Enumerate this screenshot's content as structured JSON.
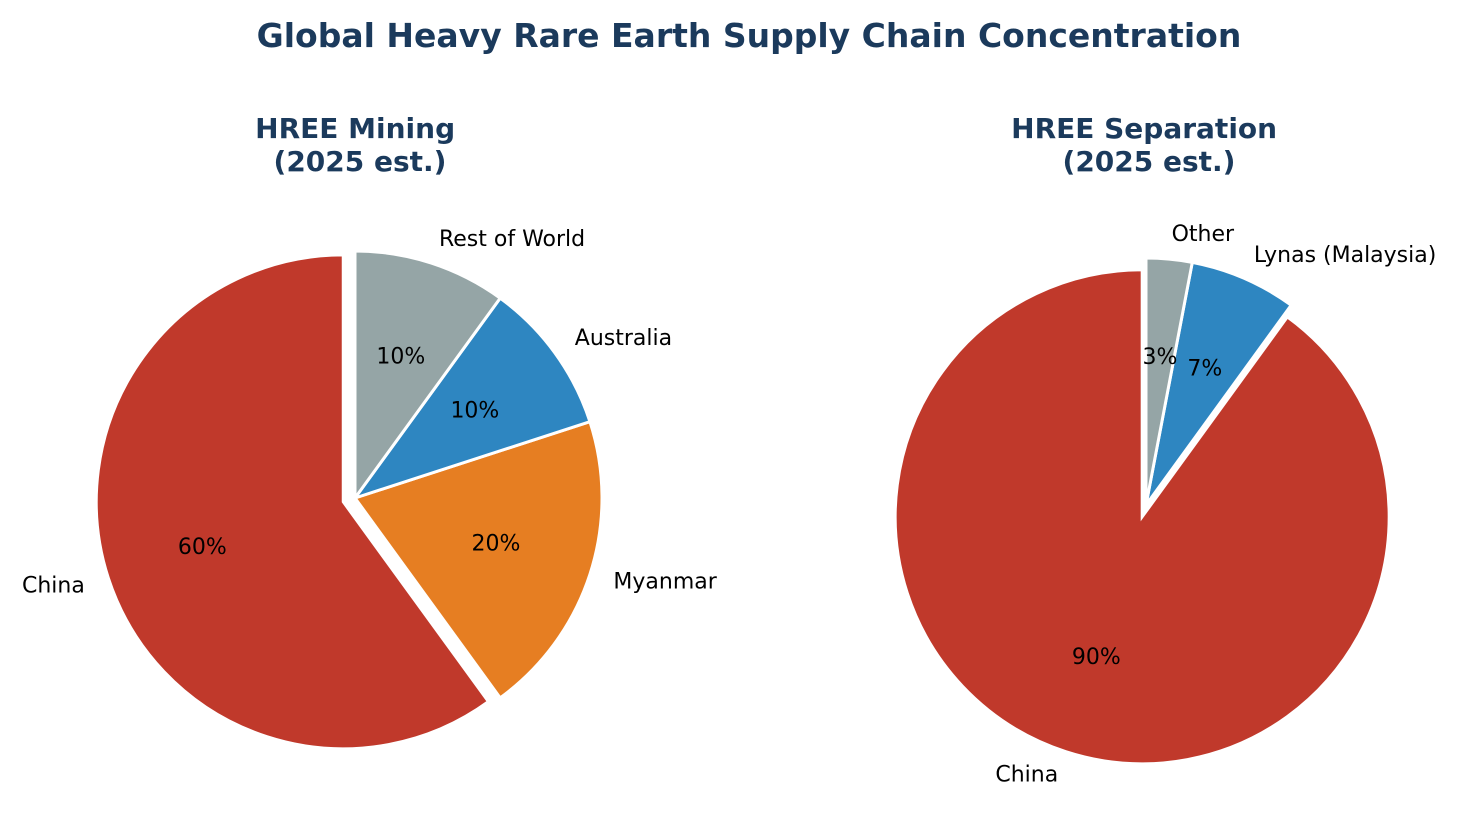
{
  "figure_title": "Global Heavy Rare Earth Supply Chain Concentration",
  "chart_data": [
    {
      "type": "pie",
      "title": "HREE Mining\n(2025 est.)",
      "title_lines": [
        "HREE Mining",
        "(2025 est.)"
      ],
      "labels": [
        "China",
        "Myanmar",
        "Australia",
        "Rest of World"
      ],
      "values": [
        60,
        20,
        10,
        10
      ],
      "value_labels": [
        "60%",
        "20%",
        "10%",
        "10%"
      ],
      "colors": [
        "#c0392b",
        "#e67e22",
        "#2e86c1",
        "#95a5a6"
      ],
      "explode": [
        0.05,
        0,
        0,
        0
      ],
      "start_angle_deg": 90,
      "direction": "counterclockwise"
    },
    {
      "type": "pie",
      "title": "HREE Separation\n(2025 est.)",
      "title_lines": [
        "HREE Separation",
        "(2025 est.)"
      ],
      "labels": [
        "China",
        "Lynas (Malaysia)",
        "Other"
      ],
      "values": [
        90,
        7,
        3
      ],
      "value_labels": [
        "90%",
        "7%",
        "3%"
      ],
      "colors": [
        "#c0392b",
        "#2e86c1",
        "#95a5a6"
      ],
      "explode": [
        0.05,
        0,
        0
      ],
      "start_angle_deg": 90,
      "direction": "counterclockwise"
    }
  ]
}
